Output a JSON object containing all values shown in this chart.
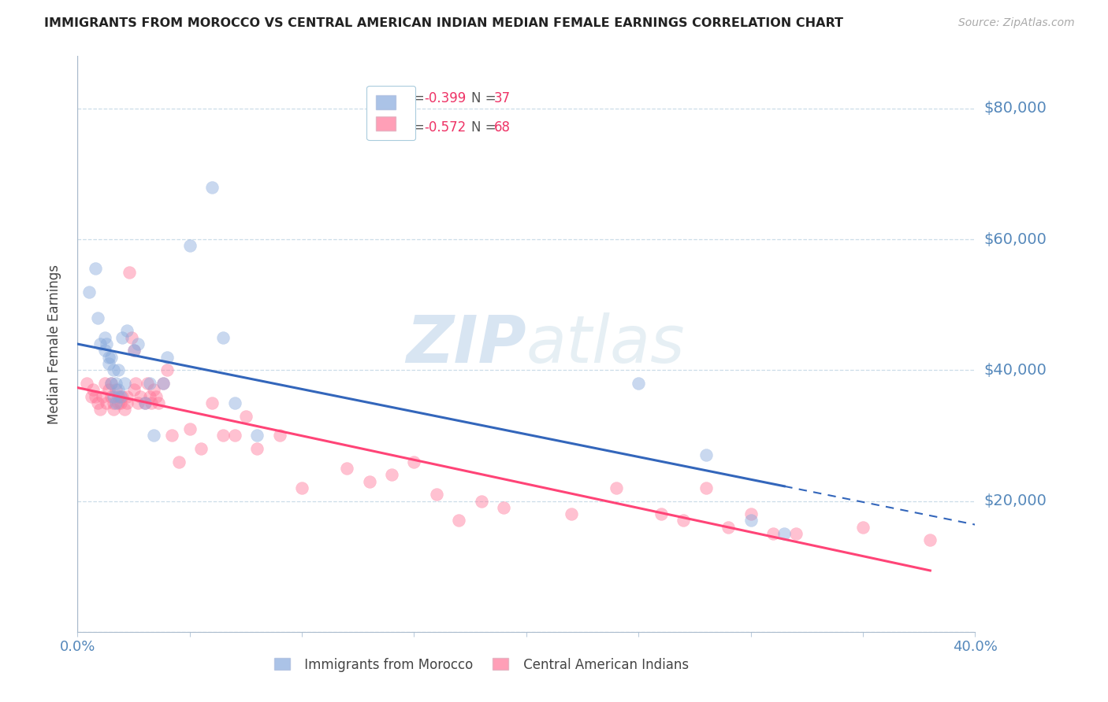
{
  "title": "IMMIGRANTS FROM MOROCCO VS CENTRAL AMERICAN INDIAN MEDIAN FEMALE EARNINGS CORRELATION CHART",
  "source": "Source: ZipAtlas.com",
  "ylabel": "Median Female Earnings",
  "yticks": [
    0,
    20000,
    40000,
    60000,
    80000
  ],
  "ytick_labels": [
    "",
    "$20,000",
    "$40,000",
    "$60,000",
    "$80,000"
  ],
  "xmin": 0.0,
  "xmax": 0.4,
  "ymin": 0,
  "ymax": 88000,
  "legend_r1": "-0.399",
  "legend_n1": "37",
  "legend_r2": "-0.572",
  "legend_n2": "68",
  "color_morocco": "#88AADD",
  "color_central": "#FF7799",
  "color_line_morocco": "#3366BB",
  "color_line_central": "#FF4477",
  "color_axis_labels": "#5588BB",
  "watermark_zip": "ZIP",
  "watermark_atlas": "atlas",
  "morocco_x": [
    0.005,
    0.008,
    0.009,
    0.01,
    0.012,
    0.012,
    0.013,
    0.014,
    0.014,
    0.015,
    0.015,
    0.016,
    0.016,
    0.017,
    0.017,
    0.018,
    0.018,
    0.019,
    0.02,
    0.021,
    0.022,
    0.025,
    0.027,
    0.03,
    0.032,
    0.034,
    0.038,
    0.04,
    0.05,
    0.06,
    0.065,
    0.07,
    0.08,
    0.25,
    0.28,
    0.3,
    0.315
  ],
  "morocco_y": [
    52000,
    55500,
    48000,
    44000,
    45000,
    43000,
    44000,
    42000,
    41000,
    42000,
    38000,
    40000,
    36000,
    38000,
    35000,
    40000,
    37000,
    36000,
    45000,
    38000,
    46000,
    43000,
    44000,
    35000,
    38000,
    30000,
    38000,
    42000,
    59000,
    68000,
    45000,
    35000,
    30000,
    38000,
    27000,
    17000,
    15000
  ],
  "central_x": [
    0.004,
    0.006,
    0.007,
    0.008,
    0.009,
    0.01,
    0.011,
    0.012,
    0.013,
    0.014,
    0.015,
    0.015,
    0.016,
    0.016,
    0.017,
    0.018,
    0.018,
    0.019,
    0.02,
    0.021,
    0.022,
    0.022,
    0.023,
    0.024,
    0.025,
    0.025,
    0.026,
    0.027,
    0.028,
    0.03,
    0.031,
    0.032,
    0.033,
    0.034,
    0.035,
    0.036,
    0.038,
    0.04,
    0.042,
    0.045,
    0.05,
    0.055,
    0.06,
    0.065,
    0.07,
    0.075,
    0.08,
    0.09,
    0.1,
    0.12,
    0.13,
    0.14,
    0.15,
    0.16,
    0.17,
    0.18,
    0.19,
    0.22,
    0.24,
    0.26,
    0.27,
    0.28,
    0.29,
    0.3,
    0.31,
    0.32,
    0.35,
    0.38
  ],
  "central_y": [
    38000,
    36000,
    37000,
    36000,
    35000,
    34000,
    36000,
    38000,
    35000,
    37000,
    36000,
    38000,
    34000,
    35000,
    37000,
    36000,
    35000,
    35000,
    36000,
    34000,
    35000,
    36000,
    55000,
    45000,
    37000,
    43000,
    38000,
    35000,
    36000,
    35000,
    38000,
    36000,
    35000,
    37000,
    36000,
    35000,
    38000,
    40000,
    30000,
    26000,
    31000,
    28000,
    35000,
    30000,
    30000,
    33000,
    28000,
    30000,
    22000,
    25000,
    23000,
    24000,
    26000,
    21000,
    17000,
    20000,
    19000,
    18000,
    22000,
    18000,
    17000,
    22000,
    16000,
    18000,
    15000,
    15000,
    16000,
    14000
  ]
}
